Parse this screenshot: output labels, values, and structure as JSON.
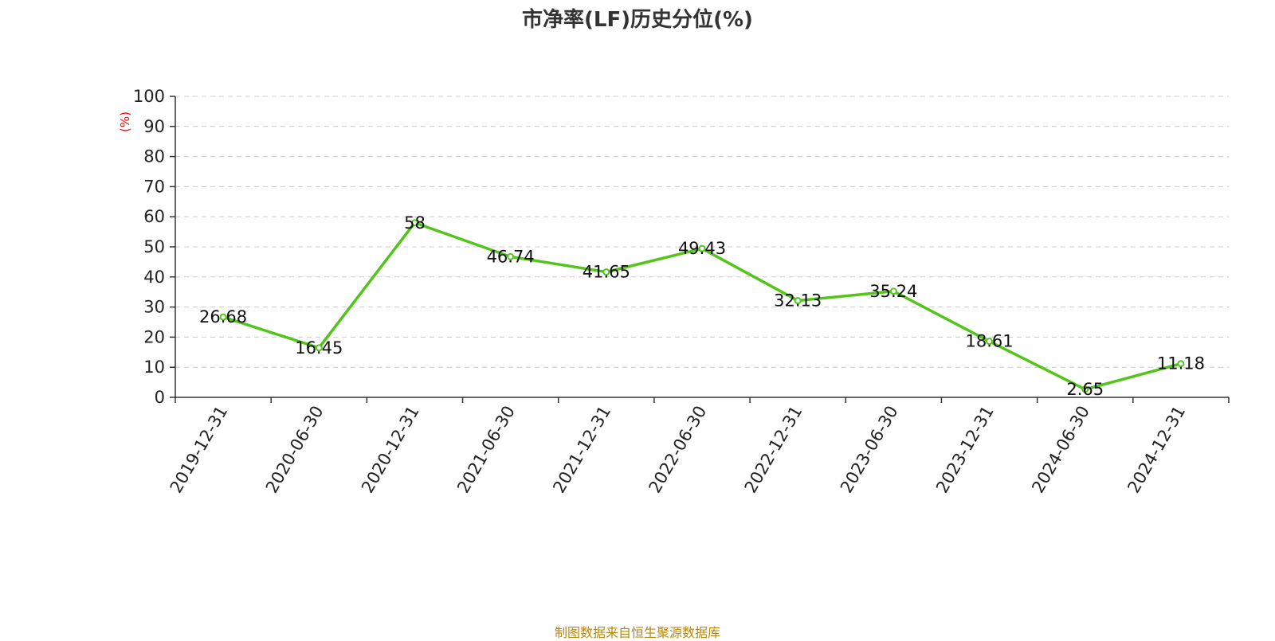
{
  "chart_data": {
    "type": "line",
    "title": "市净率(LF)历史分位(%)",
    "ylabel": "(%)",
    "ylim": [
      0,
      100
    ],
    "yticks": [
      0,
      10,
      20,
      30,
      40,
      50,
      60,
      70,
      80,
      90,
      100
    ],
    "x": [
      "2019-12-31",
      "2020-06-30",
      "2020-12-31",
      "2021-06-30",
      "2021-12-31",
      "2022-06-30",
      "2022-12-31",
      "2023-06-30",
      "2023-12-31",
      "2024-06-30",
      "2024-12-31"
    ],
    "series": [
      {
        "values": [
          26.68,
          16.45,
          58,
          46.74,
          41.65,
          49.43,
          32.13,
          35.24,
          18.61,
          2.65,
          11.18
        ],
        "labels": [
          "26.68",
          "16.45",
          "58",
          "46.74",
          "41.65",
          "49.43",
          "32.13",
          "35.24",
          "18.61",
          "2.65",
          "11.18"
        ]
      }
    ],
    "grid": "horizontal dashed",
    "legend": "none",
    "source": "制图数据来自恒生聚源数据库"
  },
  "colors": {
    "line": "#52c41a",
    "unit_label": "#ff0000",
    "source": "#b8860b",
    "grid": "#cccccc",
    "axis": "#333333"
  }
}
